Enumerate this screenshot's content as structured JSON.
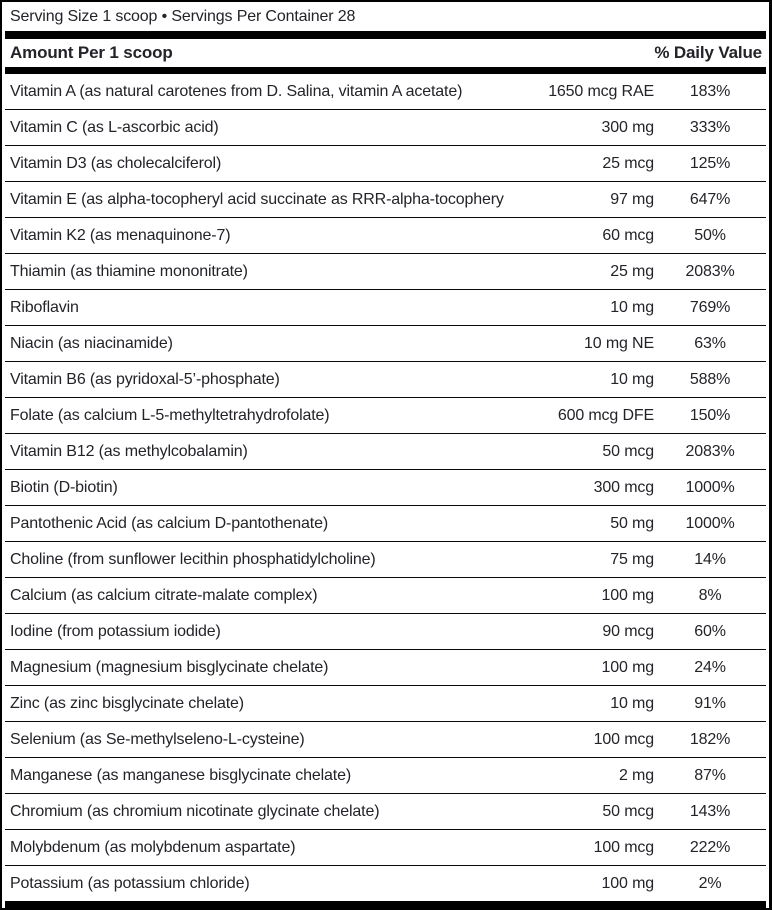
{
  "header": {
    "serving_line": "Serving Size 1 scoop • Servings Per Container 28",
    "amount_header": "Amount Per 1 scoop",
    "dv_header": "% Daily Value"
  },
  "rows": [
    {
      "name": "Vitamin A (as natural carotenes from D. Salina, vitamin A acetate)",
      "amount": "1650 mcg RAE",
      "dv": "183%"
    },
    {
      "name": "Vitamin C (as L-ascorbic acid)",
      "amount": "300 mg",
      "dv": "333%"
    },
    {
      "name": "Vitamin D3 (as cholecalciferol)",
      "amount": "25 mcg",
      "dv": "125%"
    },
    {
      "name": "Vitamin E (as alpha-tocopheryl acid succinate as RRR-alpha-tocopheryl)",
      "amount": "97 mg",
      "dv": "647%"
    },
    {
      "name": "Vitamin K2 (as menaquinone-7)",
      "amount": "60 mcg",
      "dv": "50%"
    },
    {
      "name": "Thiamin (as thiamine mononitrate)",
      "amount": "25 mg",
      "dv": "2083%"
    },
    {
      "name": "Riboflavin",
      "amount": "10 mg",
      "dv": "769%"
    },
    {
      "name": "Niacin (as niacinamide)",
      "amount": "10 mg NE",
      "dv": "63%"
    },
    {
      "name": "Vitamin B6 (as pyridoxal-5’-phosphate)",
      "amount": "10 mg",
      "dv": "588%"
    },
    {
      "name": "Folate (as calcium L-5-methyltetrahydrofolate)",
      "amount": "600 mcg DFE",
      "dv": "150%"
    },
    {
      "name": "Vitamin B12 (as methylcobalamin)",
      "amount": "50 mcg",
      "dv": "2083%"
    },
    {
      "name": "Biotin (D-biotin)",
      "amount": "300 mcg",
      "dv": "1000%"
    },
    {
      "name": "Pantothenic Acid (as calcium D-pantothenate)",
      "amount": "50 mg",
      "dv": "1000%"
    },
    {
      "name": "Choline (from sunflower lecithin phosphatidylcholine)",
      "amount": "75 mg",
      "dv": "14%"
    },
    {
      "name": "Calcium (as calcium citrate-malate complex)",
      "amount": "100 mg",
      "dv": "8%"
    },
    {
      "name": "Iodine (from potassium iodide)",
      "amount": "90 mcg",
      "dv": "60%"
    },
    {
      "name": "Magnesium (magnesium bisglycinate chelate)",
      "amount": "100 mg",
      "dv": "24%"
    },
    {
      "name": "Zinc (as zinc bisglycinate chelate)",
      "amount": "10 mg",
      "dv": "91%"
    },
    {
      "name": "Selenium (as Se-methylseleno-L-cysteine)",
      "amount": "100 mcg",
      "dv": "182%"
    },
    {
      "name": "Manganese (as manganese bisglycinate chelate)",
      "amount": "2 mg",
      "dv": "87%"
    },
    {
      "name": "Chromium (as chromium nicotinate glycinate chelate)",
      "amount": "50 mcg",
      "dv": "143%"
    },
    {
      "name": "Molybdenum (as molybdenum aspartate)",
      "amount": "100 mcg",
      "dv": "222%"
    },
    {
      "name": "Potassium (as potassium chloride)",
      "amount": "100 mg",
      "dv": "2%"
    }
  ],
  "colors": {
    "text": "#232329",
    "rule": "#0a0a0a",
    "divider": "#000000",
    "background": "#ffffff"
  }
}
